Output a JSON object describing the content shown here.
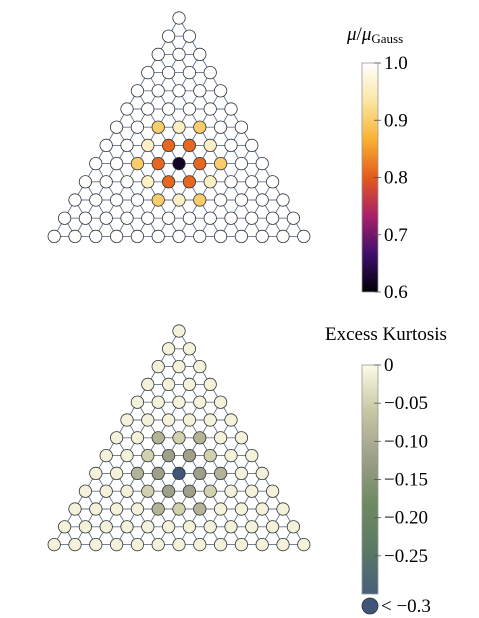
{
  "panels": [
    {
      "id": "top",
      "colorbar": {
        "title_symbol": "μ",
        "title_slash": "/",
        "title_sub_symbol": "μ",
        "title_sub_text": "Gauss",
        "ticks": [
          "1.0",
          "0.9",
          "0.8",
          "0.7",
          "0.6"
        ],
        "tick_values": [
          1.0,
          0.9,
          0.8,
          0.7,
          0.6
        ],
        "range": [
          0.6,
          1.0
        ],
        "gradient": [
          "#ffffff",
          "#fbe6a2",
          "#f9b233",
          "#e35a1c",
          "#a8216b",
          "#3e0f6a",
          "#000004"
        ]
      },
      "lattice_rows": 12,
      "node_values": {
        "center": 0.62,
        "ring1": 0.81,
        "ring2_adjacent": 0.9,
        "ring2_far": 0.96,
        "default": 1.0
      }
    },
    {
      "id": "bottom",
      "colorbar": {
        "title": "Excess Kurtosis",
        "ticks": [
          "0",
          "−0.05",
          "−0.10",
          "−0.15",
          "−0.20",
          "−0.25"
        ],
        "tick_values": [
          0,
          -0.05,
          -0.1,
          -0.15,
          -0.2,
          -0.25
        ],
        "range": [
          -0.3,
          0
        ],
        "underflow_label": "< −0.3",
        "underflow_color": "#3f5678",
        "gradient": [
          "#fdfbe6",
          "#c8c7a4",
          "#9ea08a",
          "#6f8a61",
          "#5b7a63",
          "#485f7a"
        ]
      },
      "lattice_rows": 12,
      "node_values": {
        "center": -0.35,
        "ring1": -0.12,
        "ring2_adjacent": -0.09,
        "ring2_far": -0.05,
        "default": -0.01
      }
    }
  ],
  "edge_color": "#5d7394",
  "node_stroke": "#333333"
}
